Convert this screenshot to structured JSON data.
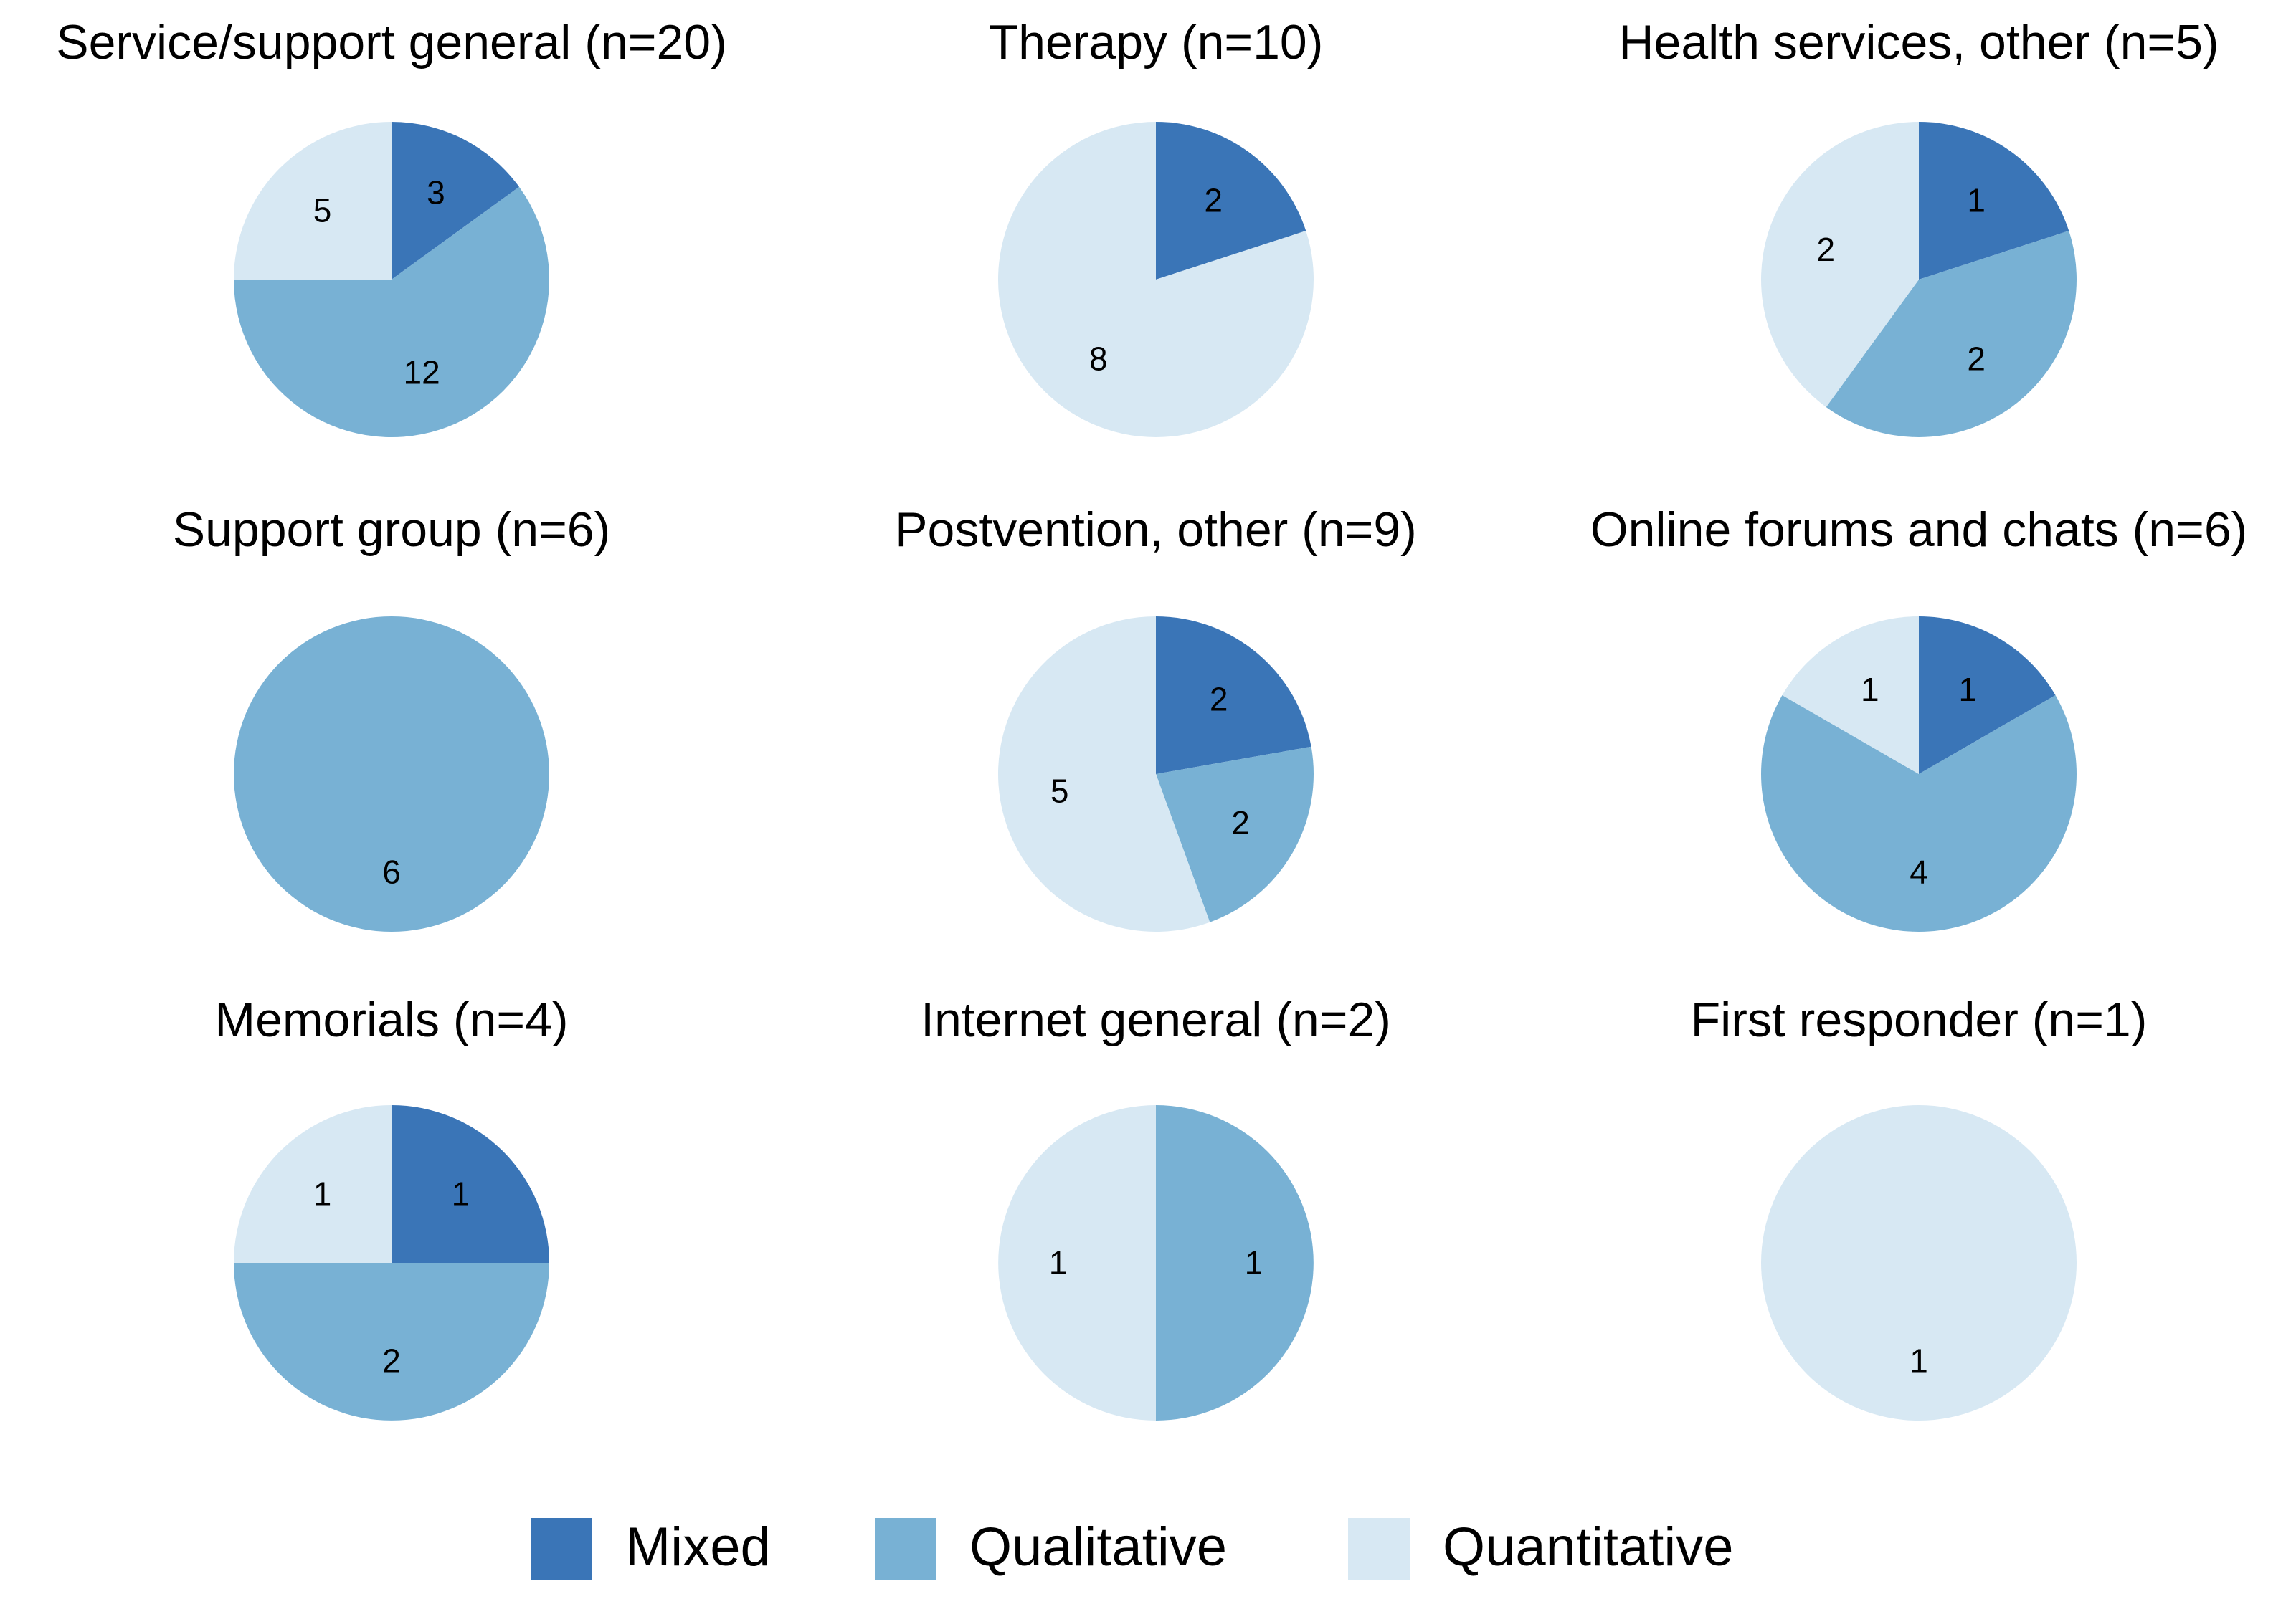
{
  "chart_data": {
    "type": "pie",
    "categories": [
      "Mixed",
      "Qualitative",
      "Quantitative"
    ],
    "colors": {
      "Mixed": "#3a75b7",
      "Qualitative": "#78b1d4",
      "Quantitative": "#d7e8f3"
    },
    "legend": {
      "position": "bottom",
      "items": [
        {
          "label": "Mixed",
          "color": "#3a75b7"
        },
        {
          "label": "Qualitative",
          "color": "#78b1d4"
        },
        {
          "label": "Quantitative",
          "color": "#d7e8f3"
        }
      ]
    },
    "panels": [
      {
        "title": "Service/support general (n=20)",
        "values": [
          3,
          12,
          5
        ]
      },
      {
        "title": "Therapy (n=10)",
        "values": [
          2,
          0,
          8
        ]
      },
      {
        "title": "Health services, other (n=5)",
        "values": [
          1,
          2,
          2
        ]
      },
      {
        "title": "Support group (n=6)",
        "values": [
          0,
          6,
          0
        ]
      },
      {
        "title": "Postvention, other (n=9)",
        "values": [
          2,
          2,
          5
        ]
      },
      {
        "title": "Online forums and chats (n=6)",
        "values": [
          1,
          4,
          1
        ]
      },
      {
        "title": "Memorials (n=4)",
        "values": [
          1,
          2,
          1
        ]
      },
      {
        "title": "Internet general (n=2)",
        "values": [
          0,
          1,
          1
        ]
      },
      {
        "title": "First responder (n=1)",
        "values": [
          0,
          0,
          1
        ]
      }
    ]
  }
}
